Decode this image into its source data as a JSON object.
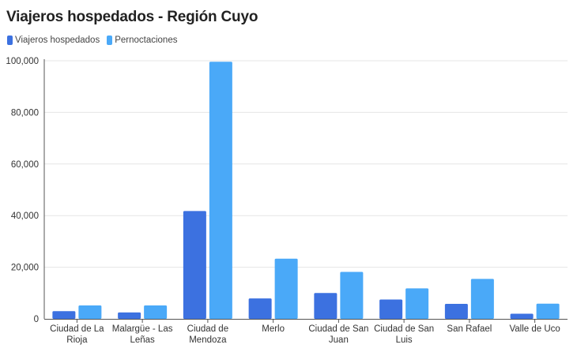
{
  "chart_data": {
    "type": "bar",
    "title": "Viajeros hospedados - Región Cuyo",
    "categories": [
      [
        "Ciudad de La",
        "Rioja"
      ],
      [
        "Malargüe - Las",
        "Leñas"
      ],
      [
        "Ciudad de",
        "Mendoza"
      ],
      [
        "Merlo"
      ],
      [
        "Ciudad de San",
        "Juan"
      ],
      [
        "Ciudad de San",
        "Luis"
      ],
      [
        "San Rafael"
      ],
      [
        "Valle de Uco"
      ]
    ],
    "series": [
      {
        "name": "Viajeros hospedados",
        "color": "#3c71e0",
        "values": [
          3000,
          2500,
          41800,
          7900,
          10000,
          7500,
          5800,
          2000
        ]
      },
      {
        "name": "Pernoctaciones",
        "color": "#4aa9f8",
        "values": [
          5200,
          5200,
          99600,
          23300,
          18200,
          11800,
          15500,
          5900
        ]
      }
    ],
    "xlabel": "",
    "ylabel": "",
    "ylim": [
      0,
      100000
    ],
    "yticks": [
      0,
      20000,
      40000,
      60000,
      80000,
      100000
    ],
    "ytick_labels": [
      "0",
      "20,000",
      "40,000",
      "60,000",
      "80,000",
      "100,000"
    ],
    "grid": true,
    "legend_position": "top-left"
  }
}
